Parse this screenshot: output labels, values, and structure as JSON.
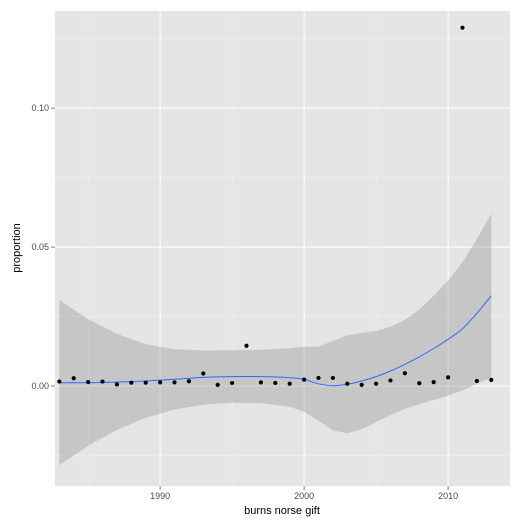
{
  "chart_data": {
    "type": "scatter",
    "xlabel": "burns norse gift",
    "ylabel": "proportion",
    "xlim": [
      1982.7,
      2014.3
    ],
    "ylim": [
      -0.036,
      0.135
    ],
    "x_ticks": [
      1990,
      2000,
      2010
    ],
    "x_tick_labels": [
      "1990",
      "2000",
      "2010"
    ],
    "y_ticks": [
      0.0,
      0.05,
      0.1
    ],
    "y_tick_labels": [
      "0.00",
      "0.05",
      "0.10"
    ],
    "grid": true,
    "legend": "none",
    "points": {
      "x": [
        1983,
        1984,
        1985,
        1986,
        1987,
        1988,
        1989,
        1990,
        1991,
        1992,
        1993,
        1994,
        1995,
        1996,
        1997,
        1998,
        1999,
        2000,
        2001,
        2002,
        2003,
        2004,
        2005,
        2006,
        2007,
        2008,
        2009,
        2010,
        2011,
        2012,
        2013
      ],
      "y": [
        0.0016,
        0.0028,
        0.0014,
        0.0016,
        0.0006,
        0.0012,
        0.0012,
        0.0013,
        0.0013,
        0.0017,
        0.0045,
        0.0004,
        0.0011,
        0.0145,
        0.0013,
        0.0011,
        0.0008,
        0.0023,
        0.0029,
        0.0029,
        0.0008,
        0.0004,
        0.0008,
        0.002,
        0.0046,
        0.001,
        0.0014,
        0.0031,
        0.129,
        0.0018,
        0.0022
      ]
    },
    "smooth": {
      "x": [
        1983,
        1985,
        1987,
        1989,
        1991,
        1993,
        1995,
        1997,
        1999,
        2000,
        2001,
        2002,
        2003,
        2004,
        2005,
        2006,
        2007,
        2008,
        2009,
        2010,
        2011,
        2012,
        2013
      ],
      "y": [
        0.0012,
        0.0012,
        0.0014,
        0.0018,
        0.0024,
        0.0031,
        0.0034,
        0.0034,
        0.003,
        0.0024,
        0.0008,
        0.0001,
        0.0006,
        0.0018,
        0.0034,
        0.0054,
        0.0078,
        0.0105,
        0.0135,
        0.0168,
        0.0206,
        0.0262,
        0.0325
      ],
      "lower": [
        -0.0285,
        -0.0215,
        -0.0158,
        -0.0115,
        -0.0085,
        -0.0067,
        -0.006,
        -0.0062,
        -0.0075,
        -0.0093,
        -0.0125,
        -0.016,
        -0.017,
        -0.0155,
        -0.013,
        -0.0105,
        -0.0082,
        -0.0065,
        -0.005,
        -0.0035,
        -0.0015,
        0.0008,
        0.003
      ],
      "upper": [
        0.031,
        0.024,
        0.0188,
        0.015,
        0.0132,
        0.0128,
        0.0129,
        0.013,
        0.0136,
        0.0141,
        0.0142,
        0.0162,
        0.0182,
        0.0191,
        0.0198,
        0.0213,
        0.0238,
        0.0275,
        0.0325,
        0.038,
        0.0445,
        0.053,
        0.062
      ],
      "line_color": "#3366FF",
      "band_color": "#999999"
    },
    "panel_background": "#E5E5E5",
    "grid_color": "#FFFFFF",
    "point_color": "#000000"
  }
}
